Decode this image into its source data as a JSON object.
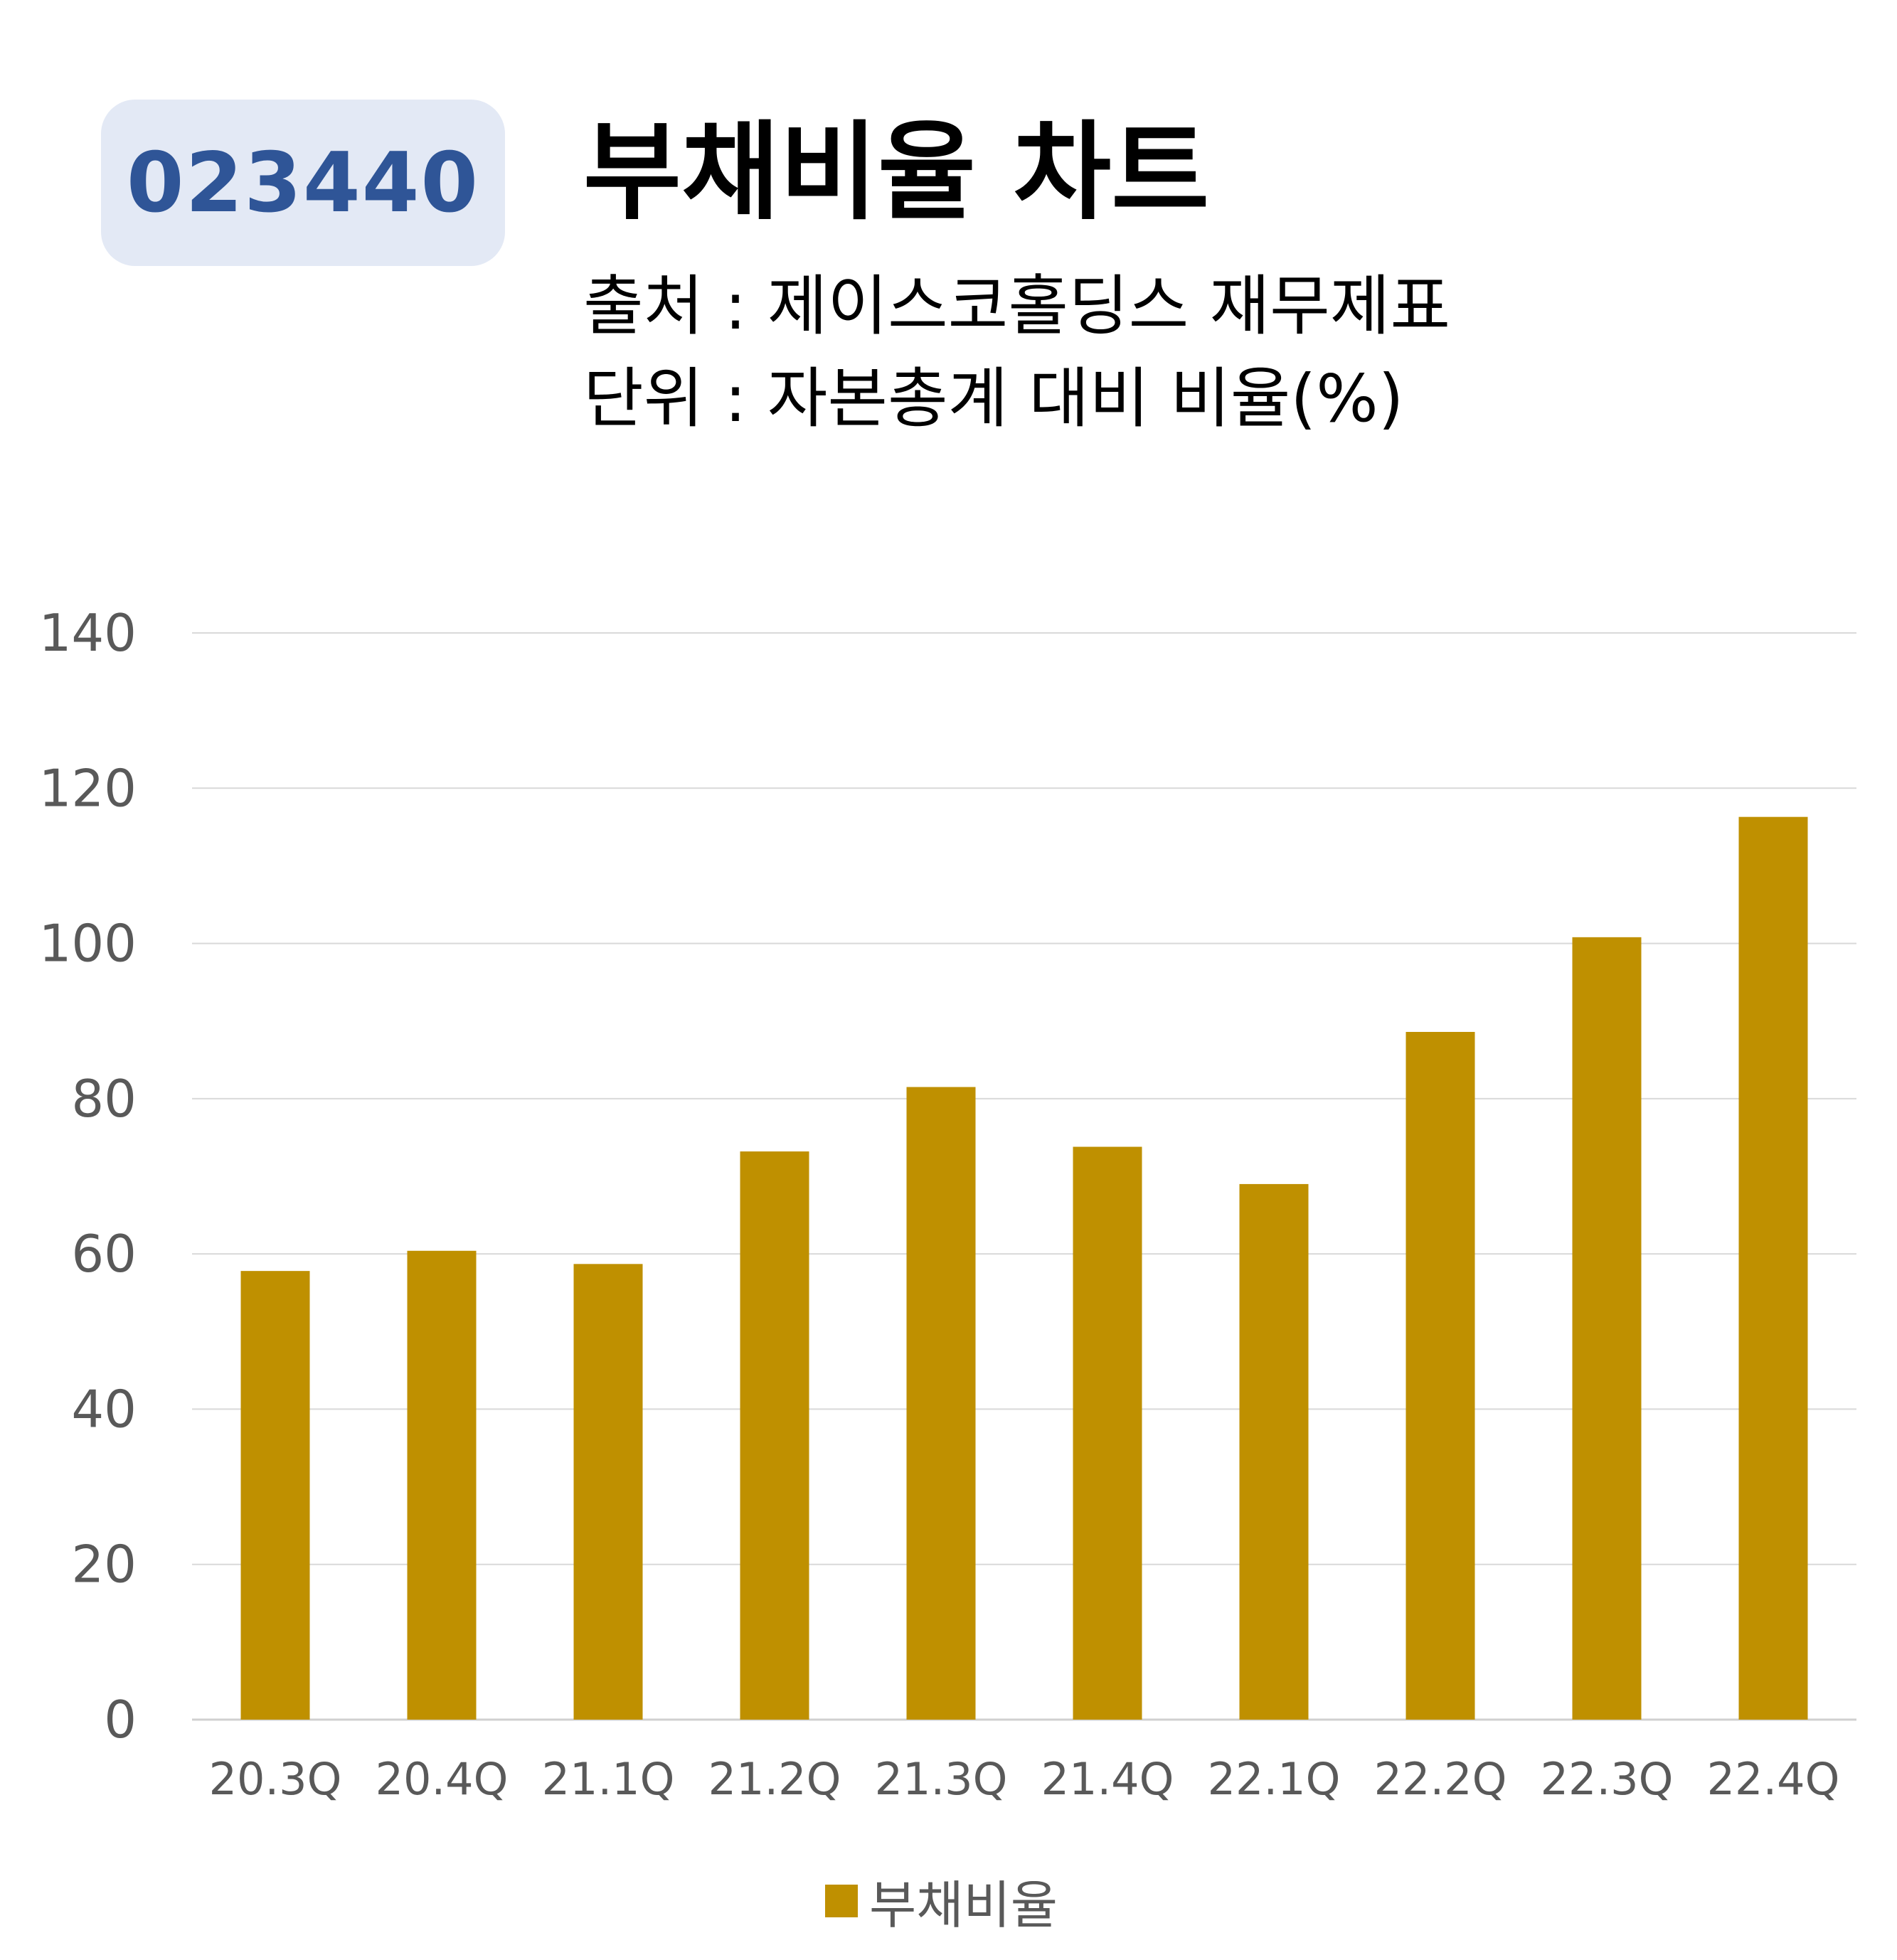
{
  "header": {
    "code": "023440",
    "title": "부채비율 차트",
    "source": "출처 : 제이스코홀딩스 재무제표",
    "unit": "단위 : 자본총계 대비 비율(%)"
  },
  "chart_data": {
    "type": "bar",
    "categories": [
      "20.3Q",
      "20.4Q",
      "21.1Q",
      "21.2Q",
      "21.3Q",
      "21.4Q",
      "22.1Q",
      "22.2Q",
      "22.3Q",
      "22.4Q"
    ],
    "series": [
      {
        "name": "부채비율",
        "values": [
          57.8,
          60.4,
          58.7,
          73.2,
          81.5,
          73.8,
          69.0,
          88.6,
          100.8,
          116.3
        ]
      }
    ],
    "ylim": [
      0,
      140
    ],
    "yticks": [
      0,
      20,
      40,
      60,
      80,
      100,
      120,
      140
    ],
    "grid": true,
    "legend": "bottom",
    "color": "#bf9000"
  }
}
